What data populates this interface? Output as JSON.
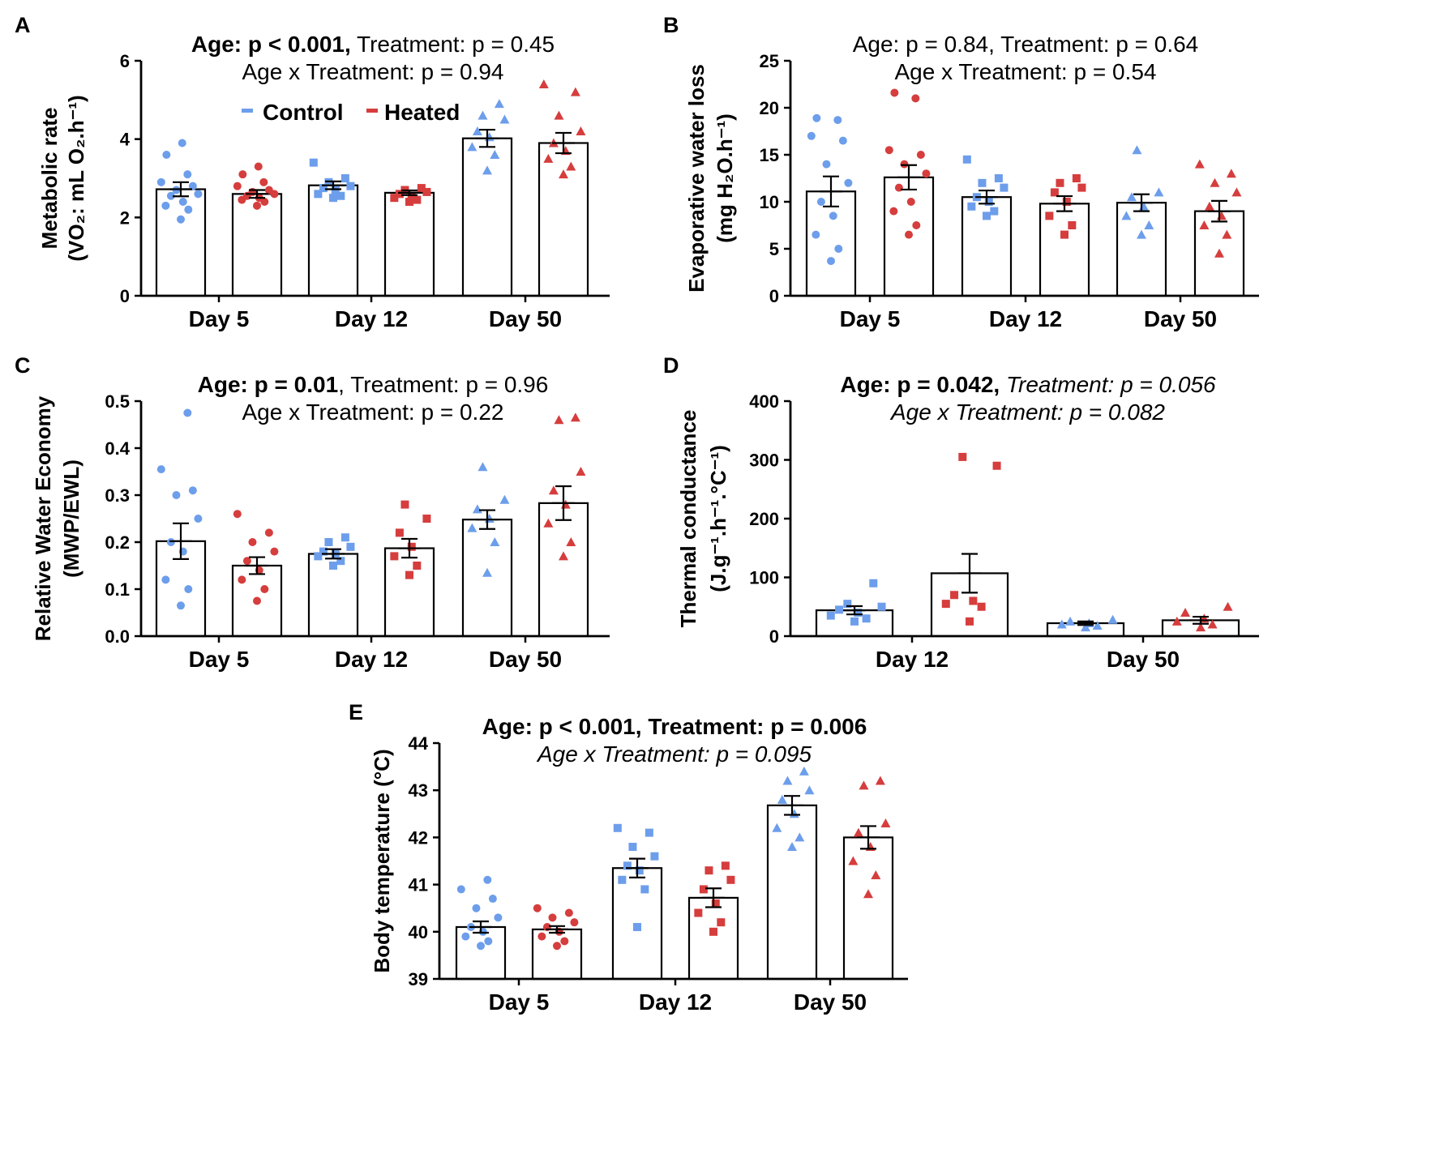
{
  "colors": {
    "control": "#6d9eeb",
    "heated": "#d63d3d",
    "axis": "#000000",
    "bar_fill": "#ffffff"
  },
  "legend": {
    "control": "Control",
    "heated": "Heated"
  },
  "chart_data": [
    {
      "panel": "A",
      "type": "bar",
      "stats_line1": [
        {
          "text": "Age: p < 0.001,",
          "style": "bold"
        },
        {
          "text": " Treatment: p = 0.45",
          "style": "normal"
        }
      ],
      "stats_line2": [
        {
          "text": "Age x Treatment: p = 0.94",
          "style": "normal"
        }
      ],
      "ylabel_line1": "Metabolic rate",
      "ylabel_line2": "(VO₂: mL O₂.h⁻¹)",
      "ylim": [
        0,
        6
      ],
      "yticks": [
        "0",
        "2",
        "4",
        "6"
      ],
      "categories": [
        "Day 5",
        "Day 12",
        "Day 50"
      ],
      "series": [
        {
          "name": "Control",
          "means": [
            2.72,
            2.82,
            4.02
          ],
          "sem": [
            0.18,
            0.1,
            0.22
          ],
          "points": [
            [
              1.95,
              2.2,
              2.3,
              2.4,
              2.55,
              2.6,
              2.7,
              2.8,
              2.9,
              3.1,
              3.6,
              3.9
            ],
            [
              2.5,
              2.55,
              2.6,
              2.7,
              2.75,
              2.8,
              2.9,
              3.0,
              3.4
            ],
            [
              3.2,
              3.6,
              3.8,
              4.05,
              4.2,
              4.5,
              4.6,
              4.9
            ]
          ]
        },
        {
          "name": "Heated",
          "means": [
            2.6,
            2.63,
            3.9
          ],
          "sem": [
            0.1,
            0.06,
            0.26
          ],
          "points": [
            [
              2.3,
              2.4,
              2.45,
              2.5,
              2.55,
              2.6,
              2.65,
              2.7,
              2.8,
              2.9,
              3.1,
              3.3
            ],
            [
              2.4,
              2.45,
              2.5,
              2.55,
              2.6,
              2.65,
              2.7,
              2.75
            ],
            [
              3.1,
              3.3,
              3.5,
              3.7,
              3.9,
              4.2,
              4.6,
              5.2,
              5.4
            ]
          ]
        }
      ]
    },
    {
      "panel": "B",
      "type": "bar",
      "stats_line1": [
        {
          "text": "Age: p = 0.84, Treatment: p = 0.64",
          "style": "normal"
        }
      ],
      "stats_line2": [
        {
          "text": "Age x Treatment: p = 0.54",
          "style": "normal"
        }
      ],
      "ylabel_line1": "Evaporative water loss",
      "ylabel_line2": "(mg H₂O.h⁻¹)",
      "ylim": [
        0,
        25
      ],
      "yticks": [
        "0",
        "5",
        "10",
        "15",
        "20",
        "25"
      ],
      "categories": [
        "Day 5",
        "Day 12",
        "Day 50"
      ],
      "series": [
        {
          "name": "Control",
          "means": [
            11.1,
            10.5,
            9.9
          ],
          "sem": [
            1.6,
            0.7,
            0.9
          ],
          "points": [
            [
              3.7,
              5.0,
              6.5,
              8.5,
              10.0,
              12.0,
              14.0,
              16.5,
              17.0,
              18.7,
              18.9
            ],
            [
              8.5,
              9.0,
              9.5,
              10.0,
              10.5,
              11.5,
              12.0,
              12.5,
              14.5
            ],
            [
              6.5,
              7.5,
              8.5,
              9.5,
              10.5,
              11.0,
              15.5
            ]
          ]
        },
        {
          "name": "Heated",
          "means": [
            12.6,
            9.8,
            9.0
          ],
          "sem": [
            1.3,
            0.8,
            1.1
          ],
          "points": [
            [
              6.5,
              7.5,
              9.0,
              10.0,
              11.5,
              13.0,
              14.0,
              15.0,
              15.5,
              21.0,
              21.6
            ],
            [
              6.5,
              7.5,
              8.5,
              10.0,
              11.0,
              11.5,
              12.0,
              12.5
            ],
            [
              4.5,
              6.5,
              7.5,
              8.5,
              9.5,
              11.0,
              12.0,
              13.0,
              14.0
            ]
          ]
        }
      ]
    },
    {
      "panel": "C",
      "type": "bar",
      "stats_line1": [
        {
          "text": "Age: p = 0.01",
          "style": "bold"
        },
        {
          "text": ", Treatment: p = 0.96",
          "style": "normal"
        }
      ],
      "stats_line2": [
        {
          "text": "Age x Treatment: p = 0.22",
          "style": "normal"
        }
      ],
      "ylabel_line1": "Relative Water Economy",
      "ylabel_line2": "(MWP/EWL)",
      "ylim": [
        0,
        0.5
      ],
      "yticks": [
        "0.0",
        "0.1",
        "0.2",
        "0.3",
        "0.4",
        "0.5"
      ],
      "categories": [
        "Day 5",
        "Day 12",
        "Day 50"
      ],
      "series": [
        {
          "name": "Control",
          "means": [
            0.202,
            0.175,
            0.248
          ],
          "sem": [
            0.038,
            0.01,
            0.02
          ],
          "points": [
            [
              0.065,
              0.1,
              0.12,
              0.18,
              0.2,
              0.25,
              0.3,
              0.31,
              0.355,
              0.475
            ],
            [
              0.15,
              0.16,
              0.17,
              0.175,
              0.18,
              0.19,
              0.2,
              0.21
            ],
            [
              0.135,
              0.2,
              0.23,
              0.25,
              0.27,
              0.29,
              0.36
            ]
          ]
        },
        {
          "name": "Heated",
          "means": [
            0.15,
            0.187,
            0.283
          ],
          "sem": [
            0.018,
            0.02,
            0.036
          ],
          "points": [
            [
              0.075,
              0.1,
              0.12,
              0.14,
              0.16,
              0.18,
              0.2,
              0.22,
              0.26
            ],
            [
              0.13,
              0.15,
              0.17,
              0.19,
              0.22,
              0.25,
              0.28
            ],
            [
              0.17,
              0.2,
              0.24,
              0.28,
              0.31,
              0.35,
              0.46,
              0.465
            ]
          ]
        }
      ]
    },
    {
      "panel": "D",
      "type": "bar",
      "stats_line1": [
        {
          "text": "Age: p = 0.042,",
          "style": "bold"
        },
        {
          "text": " Treatment: p = 0.056",
          "style": "italic"
        }
      ],
      "stats_line2": [
        {
          "text": "Age x Treatment: p = 0.082",
          "style": "italic"
        }
      ],
      "ylabel_line1": "Thermal conductance",
      "ylabel_line2": "(J.g⁻¹.h⁻¹.°C⁻¹)",
      "ylim": [
        0,
        400
      ],
      "yticks": [
        "0",
        "100",
        "200",
        "300",
        "400"
      ],
      "categories": [
        "Day 12",
        "Day 50"
      ],
      "series": [
        {
          "name": "Control",
          "means": [
            44,
            22
          ],
          "sem": [
            7,
            3
          ],
          "points": [
            [
              25,
              30,
              35,
              40,
              45,
              50,
              55,
              90
            ],
            [
              15,
              18,
              20,
              22,
              25,
              28
            ]
          ]
        },
        {
          "name": "Heated",
          "means": [
            107,
            27
          ],
          "sem": [
            33,
            6
          ],
          "points": [
            [
              25,
              50,
              55,
              60,
              70,
              290,
              305
            ],
            [
              15,
              20,
              25,
              30,
              40,
              50
            ]
          ]
        }
      ]
    },
    {
      "panel": "E",
      "type": "bar",
      "stats_line1": [
        {
          "text": "Age: p < 0.001, Treatment: p = 0.006",
          "style": "bold"
        }
      ],
      "stats_line2": [
        {
          "text": "Age x Treatment: p = 0.095",
          "style": "italic"
        }
      ],
      "ylabel_line1": "Body temperature (°C)",
      "ylabel_line2": "",
      "ylim": [
        39,
        44
      ],
      "yticks": [
        "39",
        "40",
        "41",
        "42",
        "43",
        "44"
      ],
      "categories": [
        "Day 5",
        "Day 12",
        "Day 50"
      ],
      "series": [
        {
          "name": "Control",
          "means": [
            40.1,
            41.35,
            42.68
          ],
          "sem": [
            0.12,
            0.2,
            0.2
          ],
          "points": [
            [
              39.7,
              39.8,
              39.9,
              40.0,
              40.1,
              40.3,
              40.5,
              40.7,
              40.9,
              41.1
            ],
            [
              40.1,
              40.9,
              41.1,
              41.3,
              41.4,
              41.6,
              41.8,
              42.1,
              42.2
            ],
            [
              41.8,
              42.0,
              42.2,
              42.5,
              42.8,
              43.0,
              43.2,
              43.4
            ]
          ]
        },
        {
          "name": "Heated",
          "means": [
            40.05,
            40.72,
            42.0
          ],
          "sem": [
            0.07,
            0.2,
            0.24
          ],
          "points": [
            [
              39.7,
              39.8,
              39.9,
              40.0,
              40.1,
              40.2,
              40.3,
              40.4,
              40.5
            ],
            [
              40.0,
              40.2,
              40.4,
              40.6,
              40.9,
              41.1,
              41.3,
              41.4
            ],
            [
              40.8,
              41.2,
              41.5,
              41.8,
              42.1,
              42.3,
              43.1,
              43.2
            ]
          ]
        }
      ]
    }
  ]
}
